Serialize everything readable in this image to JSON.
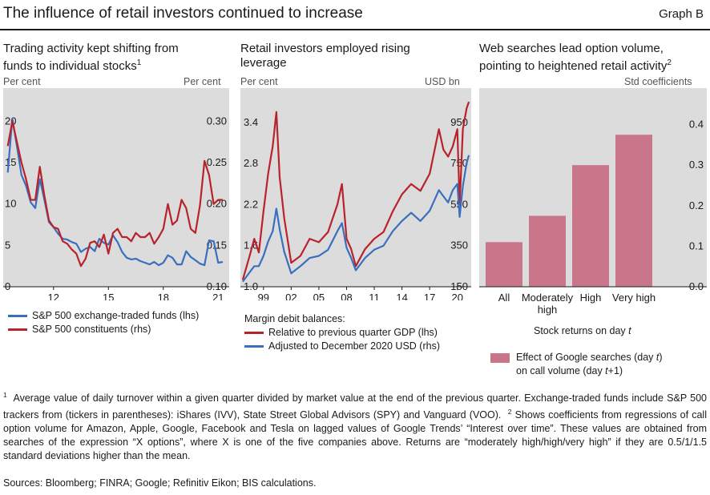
{
  "header": {
    "title": "The influence of retail investors continued to increase",
    "graph_label": "Graph B"
  },
  "chart_data": [
    {
      "type": "line",
      "title": "Trading activity kept shifting from funds to individual stocks",
      "title_line1": "Trading activity kept shifting from",
      "title_line2": "funds to individual stocks",
      "footnote_ref": "1",
      "ylabel_left": "Per cent",
      "ylabel_right": "Per cent",
      "x_ticks": [
        "12",
        "15",
        "18",
        "21"
      ],
      "x_tick_values": [
        2012,
        2015,
        2018,
        2021
      ],
      "xlim": [
        2009.25,
        2021.6
      ],
      "y_left_ticks": [
        "0",
        "5",
        "10",
        "15",
        "20"
      ],
      "ylim_left": [
        0,
        24
      ],
      "y_right_ticks": [
        "0.10",
        "0.15",
        "0.20",
        "0.25",
        "0.30"
      ],
      "ylim_right": [
        0.1,
        0.34
      ],
      "grid": false,
      "series": [
        {
          "name": "S&P 500 exchange-traded funds (lhs)",
          "axis": "left",
          "color": "#3a6fbf",
          "x": [
            2009.5,
            2009.75,
            2010,
            2010.25,
            2010.5,
            2010.75,
            2011,
            2011.25,
            2011.5,
            2011.75,
            2012,
            2012.25,
            2012.5,
            2012.75,
            2013,
            2013.25,
            2013.5,
            2013.75,
            2014,
            2014.25,
            2014.5,
            2014.75,
            2015,
            2015.25,
            2015.5,
            2015.75,
            2016,
            2016.25,
            2016.5,
            2016.75,
            2017,
            2017.25,
            2017.5,
            2017.75,
            2018,
            2018.25,
            2018.5,
            2018.75,
            2019,
            2019.25,
            2019.5,
            2019.75,
            2020,
            2020.25,
            2020.5,
            2020.75,
            2021,
            2021.25
          ],
          "y": [
            13.8,
            20.3,
            17,
            13.5,
            12.2,
            10.2,
            9.5,
            13,
            10.5,
            7.8,
            7.2,
            6.4,
            5.8,
            5.7,
            5.4,
            5.2,
            4.2,
            4.6,
            4.8,
            4.3,
            5.8,
            5.3,
            5.1,
            6.2,
            5.4,
            4.2,
            3.5,
            3.3,
            3.4,
            3.1,
            2.9,
            2.7,
            3,
            2.6,
            2.9,
            3.8,
            3.5,
            2.7,
            2.7,
            4.3,
            3.6,
            3.2,
            2.8,
            2.6,
            5.6,
            5.5,
            2.9,
            3
          ]
        },
        {
          "name": "S&P 500 constituents (rhs)",
          "axis": "right",
          "color": "#b8232b",
          "x": [
            2009.5,
            2009.75,
            2010,
            2010.25,
            2010.5,
            2010.75,
            2011,
            2011.25,
            2011.5,
            2011.75,
            2012,
            2012.25,
            2012.5,
            2012.75,
            2013,
            2013.25,
            2013.5,
            2013.75,
            2014,
            2014.25,
            2014.5,
            2014.75,
            2015,
            2015.25,
            2015.5,
            2015.75,
            2016,
            2016.25,
            2016.5,
            2016.75,
            2017,
            2017.25,
            2017.5,
            2017.75,
            2018,
            2018.25,
            2018.5,
            2018.75,
            2019,
            2019.25,
            2019.5,
            2019.75,
            2020,
            2020.25,
            2020.5,
            2020.75,
            2021,
            2021.25
          ],
          "y": [
            0.27,
            0.3,
            0.275,
            0.25,
            0.23,
            0.205,
            0.205,
            0.245,
            0.21,
            0.18,
            0.172,
            0.17,
            0.155,
            0.152,
            0.145,
            0.14,
            0.125,
            0.134,
            0.153,
            0.155,
            0.148,
            0.163,
            0.14,
            0.165,
            0.17,
            0.16,
            0.16,
            0.155,
            0.165,
            0.16,
            0.16,
            0.165,
            0.152,
            0.16,
            0.17,
            0.2,
            0.175,
            0.18,
            0.205,
            0.195,
            0.17,
            0.165,
            0.198,
            0.252,
            0.235,
            0.2,
            0.205,
            0.205
          ]
        }
      ]
    },
    {
      "type": "line",
      "title": "Retail investors employed rising leverage",
      "title_line1": "Retail investors employed rising",
      "title_line2": "leverage",
      "ylabel_left": "Per cent",
      "ylabel_right": "USD bn",
      "x_ticks": [
        "99",
        "02",
        "05",
        "08",
        "11",
        "14",
        "17",
        "20"
      ],
      "x_tick_values": [
        1999,
        2002,
        2005,
        2008,
        2011,
        2014,
        2017,
        2020
      ],
      "xlim": [
        1996.5,
        2021.5
      ],
      "y_left_ticks": [
        "1.0",
        "1.6",
        "2.2",
        "2.8",
        "3.4"
      ],
      "ylim_left": [
        1.0,
        3.9
      ],
      "y_right_ticks": [
        "150",
        "350",
        "550",
        "750",
        "950"
      ],
      "ylim_right": [
        150,
        1116.67
      ],
      "legend_header": "Margin debit balances:",
      "grid": false,
      "series": [
        {
          "name": "Relative to previous quarter GDP (lhs)",
          "axis": "left",
          "color": "#b8232b",
          "x": [
            1996.75,
            1997.5,
            1998,
            1998.5,
            1999,
            1999.5,
            2000,
            2000.4,
            2000.75,
            2001.25,
            2002,
            2003,
            2004,
            2005,
            2006,
            2007,
            2007.5,
            2008,
            2008.5,
            2009,
            2010,
            2011,
            2012,
            2013,
            2014,
            2015,
            2016,
            2017,
            2018,
            2018.5,
            2019,
            2019.5,
            2020,
            2020.25,
            2020.6,
            2021,
            2021.25
          ],
          "y": [
            1.1,
            1.45,
            1.7,
            1.5,
            2.1,
            2.65,
            3.05,
            3.55,
            2.6,
            2.0,
            1.35,
            1.45,
            1.7,
            1.65,
            1.8,
            2.2,
            2.5,
            1.7,
            1.55,
            1.3,
            1.55,
            1.7,
            1.8,
            2.1,
            2.35,
            2.5,
            2.4,
            2.65,
            3.3,
            3.0,
            2.9,
            3.05,
            3.3,
            2.2,
            3.3,
            3.6,
            3.7
          ]
        },
        {
          "name": "Adjusted to December 2020 USD (rhs)",
          "axis": "right",
          "color": "#3a6fbf",
          "x": [
            1996.75,
            1997.5,
            1998,
            1998.5,
            1999,
            1999.5,
            2000,
            2000.4,
            2000.75,
            2001.25,
            2002,
            2003,
            2004,
            2005,
            2006,
            2007,
            2007.5,
            2008,
            2008.5,
            2009,
            2010,
            2011,
            2012,
            2013,
            2014,
            2015,
            2016,
            2017,
            2018,
            2018.5,
            2019,
            2019.5,
            2020,
            2020.25,
            2020.6,
            2021,
            2021.25
          ],
          "y": [
            175,
            220,
            250,
            250,
            300,
            370,
            420,
            530,
            430,
            320,
            215,
            250,
            290,
            300,
            330,
            420,
            460,
            340,
            290,
            230,
            290,
            330,
            350,
            420,
            470,
            510,
            470,
            520,
            620,
            590,
            560,
            620,
            650,
            490,
            640,
            750,
            790
          ]
        }
      ]
    },
    {
      "type": "bar",
      "title": "Web searches lead option volume, pointing to heightened retail activity",
      "title_line1": "Web searches lead option volume,",
      "title_line2": "pointing to heightened retail activity",
      "footnote_ref": "2",
      "ylabel": "Std coefficients",
      "xlabel": "Stock returns on day t",
      "xlabel_prefix": "Stock returns on day ",
      "xlabel_italic": "t",
      "categories": [
        "All",
        "Moderately high",
        "High",
        "Very high"
      ],
      "category_lines": [
        [
          "All"
        ],
        [
          "Moderately",
          "high"
        ],
        [
          "High"
        ],
        [
          "Very high"
        ]
      ],
      "y_ticks": [
        "0.0",
        "0.1",
        "0.2",
        "0.3",
        "0.4"
      ],
      "ylim": [
        0,
        0.49
      ],
      "grid": false,
      "color": "#c9758a",
      "series": [
        {
          "name": "Effect of Google searches (day t) on call volume (day t+1)",
          "values": [
            0.11,
            0.175,
            0.3,
            0.375
          ]
        }
      ],
      "legend": {
        "line1_prefix": "Effect of Google searches (day ",
        "line1_italic": "t",
        "line1_suffix": ")",
        "line2_prefix": "on call volume (day ",
        "line2_italic": "t",
        "line2_suffix": "+1)"
      }
    }
  ],
  "footnotes": {
    "ref1": "1",
    "note1": "Average value of daily turnover within a given quarter divided by market value at the end of the previous quarter. Exchange-traded funds include S&P 500 trackers from (tickers in parentheses): iShares (IVV), State Street Global Advisors (SPY) and Vanguard (VOO).",
    "ref2": "2",
    "note2": "Shows coefficients from regressions of call option volume for Amazon, Apple, Google, Facebook and Tesla on lagged values of Google Trends’ “Interest over time”. These values are obtained from searches of the expression “X options”, where X is one of the five companies above. Returns are “moderately high/high/very high” if they are 0.5/1/1.5 standard deviations higher than the mean."
  },
  "sources": "Sources: Bloomberg; FINRA; Google; Refinitiv Eikon; BIS calculations."
}
